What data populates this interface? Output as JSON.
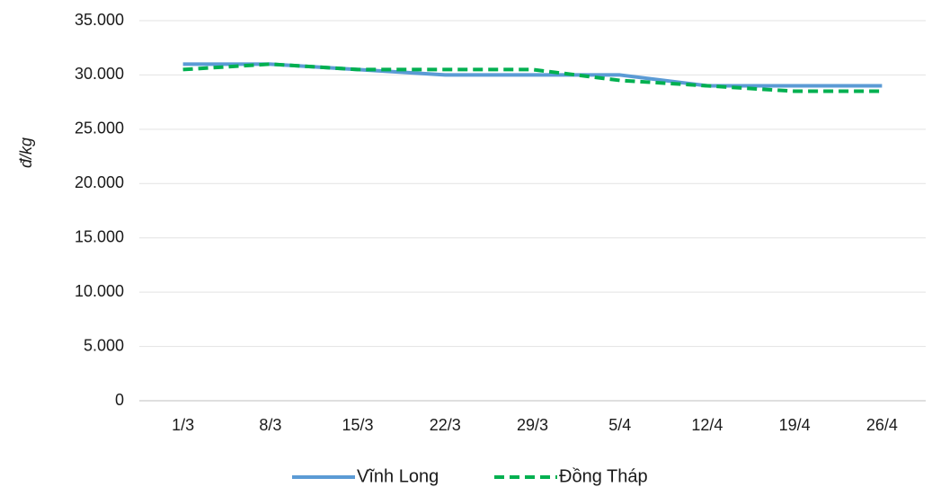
{
  "chart_data": {
    "type": "line",
    "title": "",
    "xlabel": "",
    "ylabel": "đ/kg",
    "categories": [
      "1/3",
      "8/3",
      "15/3",
      "22/3",
      "29/3",
      "5/4",
      "12/4",
      "19/4",
      "26/4"
    ],
    "ylim": [
      0,
      35000
    ],
    "yticks": [
      "0",
      "5.000",
      "10.000",
      "15.000",
      "20.000",
      "25.000",
      "30.000",
      "35.000"
    ],
    "grid": true,
    "legend_position": "bottom",
    "series": [
      {
        "name": "Vĩnh Long",
        "values": [
          31000,
          31000,
          30500,
          30000,
          30000,
          30000,
          29000,
          29000,
          29000
        ],
        "color": "#5b9bd5",
        "style": "solid"
      },
      {
        "name": "Đồng Tháp",
        "values": [
          30500,
          31000,
          30500,
          30500,
          30500,
          29500,
          29000,
          28500,
          28500
        ],
        "color": "#00b050",
        "style": "dashed"
      }
    ]
  }
}
